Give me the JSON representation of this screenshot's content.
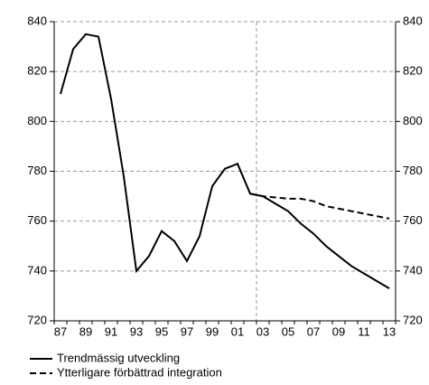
{
  "chart_data": {
    "type": "line",
    "categories": [
      "87",
      null,
      "89",
      null,
      "91",
      null,
      "93",
      null,
      "95",
      null,
      "97",
      null,
      "99",
      null,
      "01",
      null,
      "03",
      null,
      "05",
      null,
      "07",
      null,
      "09",
      null,
      "11",
      null,
      "13"
    ],
    "series": [
      {
        "name": "Trendmässig utveckling",
        "color": "#000000",
        "dash": "solid",
        "values": [
          811,
          829,
          835,
          834,
          809,
          778,
          740,
          746,
          756,
          752,
          744,
          754,
          774,
          781,
          783,
          771,
          770,
          767,
          764,
          759,
          755,
          750,
          746,
          742,
          739,
          736,
          733
        ]
      },
      {
        "name": "Ytterligare förbättrad integration",
        "color": "#000000",
        "dash": "dashed",
        "values": [
          null,
          null,
          null,
          null,
          null,
          null,
          null,
          null,
          null,
          null,
          null,
          null,
          null,
          null,
          null,
          771,
          770,
          769.5,
          769,
          769,
          768,
          766,
          765,
          764,
          763,
          762,
          761
        ]
      }
    ],
    "ylim": [
      720,
      840
    ],
    "yticks": [
      720,
      740,
      760,
      780,
      800,
      820,
      840
    ],
    "y2lim": [
      720,
      840
    ],
    "y2ticks": [
      720,
      740,
      760,
      780,
      800,
      820,
      840
    ],
    "grid": true
  }
}
